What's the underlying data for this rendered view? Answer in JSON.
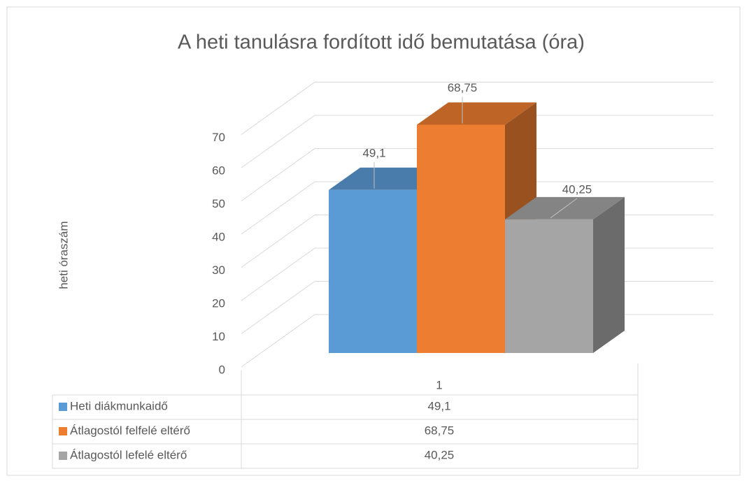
{
  "chart_data": {
    "type": "bar3d",
    "title": "A heti tanulásra fordított idő bemutatása (óra)",
    "y_label": "heti óraszám",
    "categories": [
      "1"
    ],
    "series": [
      {
        "name": "Heti diákmunkaidő",
        "color": "#5b9bd5",
        "values": [
          49.1
        ],
        "value_labels": [
          "49,1"
        ]
      },
      {
        "name": "Átlagostól felfelé eltérő",
        "color": "#ed7d31",
        "values": [
          68.75
        ],
        "value_labels": [
          "68,75"
        ]
      },
      {
        "name": "Átlagostól lefelé eltérő",
        "color": "#a5a5a5",
        "values": [
          40.25
        ],
        "value_labels": [
          "40,25"
        ]
      }
    ],
    "ylim": [
      0,
      70
    ],
    "yticks": [
      0,
      10,
      20,
      30,
      40,
      50,
      60,
      70
    ],
    "grid": true,
    "data_table": true
  }
}
